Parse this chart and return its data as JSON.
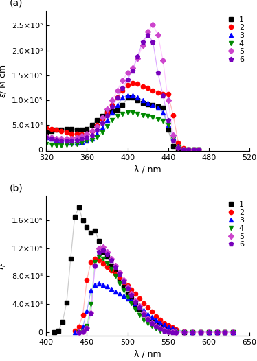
{
  "panel_a": {
    "title": "(a)",
    "xlabel": "λ / nm",
    "ylabel": "ε/ M cm",
    "xlim": [
      320,
      520
    ],
    "ylim": [
      -2000.0,
      280000.0
    ],
    "yticks": [
      0,
      50000.0,
      100000.0,
      150000.0,
      200000.0,
      250000.0
    ],
    "ytick_labels": [
      "0",
      "5.0×10⁴",
      "1.0×10⁵",
      "1.5×10⁵",
      "2.0×10⁵",
      "2.5×10⁵"
    ],
    "xticks": [
      320,
      360,
      400,
      440,
      480,
      520
    ],
    "series": [
      {
        "label": "1",
        "color": "#000000",
        "line_color": "#bbbbbb",
        "marker": "s",
        "x": [
          320,
          325,
          330,
          335,
          340,
          345,
          350,
          355,
          360,
          365,
          370,
          375,
          380,
          385,
          390,
          395,
          400,
          405,
          410,
          415,
          420,
          425,
          430,
          435,
          440,
          445,
          450,
          455,
          460,
          465,
          470
        ],
        "y": [
          35000.0,
          38000.0,
          40000.0,
          41000.0,
          42000.0,
          42000.0,
          41000.0,
          40000.0,
          42000.0,
          50000.0,
          60000.0,
          68000.0,
          75000.0,
          78000.0,
          80000.0,
          90000.0,
          105000.0,
          105000.0,
          100000.0,
          95000.0,
          92000.0,
          90000.0,
          88000.0,
          85000.0,
          40000.0,
          8000.0,
          500.0,
          100.0,
          0,
          0,
          0
        ]
      },
      {
        "label": "2",
        "color": "#ff0000",
        "line_color": "#ffbbbb",
        "marker": "o",
        "x": [
          320,
          325,
          330,
          335,
          340,
          345,
          350,
          355,
          360,
          365,
          370,
          375,
          380,
          385,
          390,
          395,
          400,
          405,
          410,
          415,
          420,
          425,
          430,
          435,
          440,
          445,
          450,
          455,
          460,
          465,
          470
        ],
        "y": [
          45000.0,
          42000.0,
          40000.0,
          38000.0,
          35000.0,
          33000.0,
          32000.0,
          31000.0,
          32000.0,
          38000.0,
          50000.0,
          62000.0,
          75000.0,
          90000.0,
          105000.0,
          120000.0,
          130000.0,
          135000.0,
          133000.0,
          128000.0,
          125000.0,
          120000.0,
          115000.0,
          112000.0,
          112000.0,
          70000.0,
          15000.0,
          3000.0,
          500.0,
          0,
          0
        ]
      },
      {
        "label": "3",
        "color": "#0000ff",
        "line_color": "#aaaaff",
        "marker": "^",
        "x": [
          320,
          325,
          330,
          335,
          340,
          345,
          350,
          355,
          360,
          365,
          370,
          375,
          380,
          385,
          390,
          395,
          400,
          405,
          410,
          415,
          420,
          425,
          430,
          435,
          440,
          445,
          450,
          455,
          460,
          465,
          470
        ],
        "y": [
          25000.0,
          22000.0,
          20000.0,
          18000.0,
          16000.0,
          15000.0,
          15000.0,
          16000.0,
          18000.0,
          22000.0,
          32000.0,
          45000.0,
          60000.0,
          75000.0,
          90000.0,
          105000.0,
          110000.0,
          110000.0,
          105000.0,
          100000.0,
          95000.0,
          90000.0,
          85000.0,
          75000.0,
          50000.0,
          25000.0,
          8000.0,
          2000.0,
          200.0,
          0,
          0
        ]
      },
      {
        "label": "4",
        "color": "#008800",
        "line_color": "#aaffaa",
        "marker": "v",
        "x": [
          320,
          325,
          330,
          335,
          340,
          345,
          350,
          355,
          360,
          365,
          370,
          375,
          380,
          385,
          390,
          395,
          400,
          405,
          410,
          415,
          420,
          425,
          430,
          435,
          440,
          445,
          450,
          455,
          460,
          465,
          470
        ],
        "y": [
          12000.0,
          10000.0,
          9000.0,
          9000.0,
          10000.0,
          11000.0,
          12000.0,
          15000.0,
          18000.0,
          20000.0,
          25000.0,
          35000.0,
          48000.0,
          60000.0,
          68000.0,
          72000.0,
          75000.0,
          75000.0,
          72000.0,
          70000.0,
          68000.0,
          65000.0,
          62000.0,
          58000.0,
          50000.0,
          22000.0,
          4000.0,
          300.0,
          0,
          0,
          0
        ]
      },
      {
        "label": "5",
        "color": "#cc44cc",
        "line_color": "#ffccff",
        "marker": "D",
        "x": [
          320,
          325,
          330,
          335,
          340,
          345,
          350,
          355,
          360,
          365,
          370,
          375,
          380,
          385,
          390,
          395,
          400,
          405,
          410,
          415,
          420,
          425,
          430,
          435,
          440,
          445,
          450,
          455,
          460,
          465,
          470
        ],
        "y": [
          28000.0,
          25000.0,
          23000.0,
          22000.0,
          22000.0,
          23000.0,
          25000.0,
          28000.0,
          32000.0,
          38000.0,
          48000.0,
          65000.0,
          82000.0,
          100000.0,
          120000.0,
          140000.0,
          155000.0,
          165000.0,
          185000.0,
          210000.0,
          238000.0,
          252000.0,
          232000.0,
          180000.0,
          100000.0,
          30000.0,
          5000.0,
          500.0,
          0,
          0,
          0
        ]
      },
      {
        "label": "6",
        "color": "#7700bb",
        "line_color": "#ddaaff",
        "marker": "p",
        "x": [
          320,
          325,
          330,
          335,
          340,
          345,
          350,
          355,
          360,
          365,
          370,
          375,
          380,
          385,
          390,
          395,
          400,
          405,
          410,
          415,
          420,
          425,
          430,
          435,
          440,
          445,
          450,
          455,
          460,
          465,
          470
        ],
        "y": [
          25000.0,
          22000.0,
          20000.0,
          19000.0,
          18000.0,
          19000.0,
          20000.0,
          22000.0,
          25000.0,
          30000.0,
          40000.0,
          55000.0,
          70000.0,
          88000.0,
          105000.0,
          125000.0,
          142000.0,
          160000.0,
          188000.0,
          218000.0,
          232000.0,
          218000.0,
          155000.0,
          110000.0,
          60000.0,
          18000.0,
          4000.0,
          500.0,
          0,
          0,
          0
        ]
      }
    ]
  },
  "panel_b": {
    "title": "(b)",
    "xlabel": "λ / nm",
    "ylabel": "I_F",
    "xlim": [
      400,
      650
    ],
    "ylim": [
      -50000.0,
      1950000.0
    ],
    "yticks": [
      0,
      400000.0,
      800000.0,
      1200000.0,
      1600000.0
    ],
    "ytick_labels": [
      "0",
      "4.0×10⁵",
      "8.0×10⁵",
      "1.2×10⁶",
      "1.6×10⁶"
    ],
    "xticks": [
      400,
      450,
      500,
      550,
      600,
      650
    ],
    "series": [
      {
        "label": "1",
        "color": "#000000",
        "line_color": "#cccccc",
        "marker": "s",
        "x": [
          410,
          415,
          420,
          425,
          430,
          435,
          440,
          445,
          450,
          455,
          460,
          465,
          470,
          475,
          480,
          485,
          490,
          495,
          500,
          505,
          510,
          515,
          520,
          525,
          530,
          535,
          540,
          545,
          550,
          555,
          560,
          570,
          580,
          590,
          600,
          610,
          620,
          630
        ],
        "y": [
          0,
          20000.0,
          150000.0,
          420000.0,
          1050000.0,
          1650000.0,
          1780000.0,
          1600000.0,
          1500000.0,
          1420000.0,
          1450000.0,
          1300000.0,
          1150000.0,
          1080000.0,
          950000.0,
          850000.0,
          750000.0,
          650000.0,
          550000.0,
          480000.0,
          400000.0,
          320000.0,
          260000.0,
          200000.0,
          150000.0,
          110000.0,
          75000.0,
          50000.0,
          30000.0,
          15000.0,
          8000.0,
          2000.0,
          500.0,
          0,
          0,
          0,
          0,
          0
        ]
      },
      {
        "label": "2",
        "color": "#ff0000",
        "line_color": "#ffbbbb",
        "marker": "o",
        "x": [
          435,
          440,
          445,
          450,
          455,
          460,
          465,
          470,
          475,
          480,
          485,
          490,
          495,
          500,
          505,
          510,
          515,
          520,
          525,
          530,
          535,
          540,
          545,
          550,
          555,
          560,
          570,
          580,
          590,
          600,
          610,
          620,
          630
        ],
        "y": [
          20000.0,
          80000.0,
          250000.0,
          750000.0,
          1000000.0,
          1050000.0,
          1030000.0,
          980000.0,
          930000.0,
          880000.0,
          830000.0,
          780000.0,
          720000.0,
          670000.0,
          610000.0,
          550000.0,
          480000.0,
          410000.0,
          350000.0,
          290000.0,
          230000.0,
          180000.0,
          130000.0,
          95000.0,
          65000.0,
          40000.0,
          12000.0,
          2000.0,
          500.0,
          0,
          0,
          0,
          0
        ]
      },
      {
        "label": "3",
        "color": "#0000ff",
        "line_color": "#aaaaff",
        "marker": "^",
        "x": [
          435,
          440,
          445,
          450,
          455,
          460,
          465,
          470,
          475,
          480,
          485,
          490,
          495,
          500,
          505,
          510,
          515,
          520,
          525,
          530,
          535,
          540,
          545,
          550,
          555,
          560,
          570,
          580,
          590,
          600,
          610,
          620,
          630
        ],
        "y": [
          5000.0,
          20000.0,
          80000.0,
          300000.0,
          600000.0,
          680000.0,
          700000.0,
          680000.0,
          660000.0,
          620000.0,
          580000.0,
          550000.0,
          520000.0,
          480000.0,
          450000.0,
          410000.0,
          360000.0,
          310000.0,
          260000.0,
          220000.0,
          180000.0,
          140000.0,
          110000.0,
          80000.0,
          55000.0,
          35000.0,
          12000.0,
          3000.0,
          500.0,
          0,
          0,
          0,
          0
        ]
      },
      {
        "label": "4",
        "color": "#008800",
        "line_color": "#aaffaa",
        "marker": "v",
        "x": [
          440,
          445,
          450,
          455,
          460,
          465,
          470,
          475,
          480,
          485,
          490,
          495,
          500,
          505,
          510,
          515,
          520,
          525,
          530,
          535,
          540,
          545,
          550,
          555,
          560,
          570,
          580,
          590,
          600,
          610,
          620,
          630
        ],
        "y": [
          5000.0,
          20000.0,
          90000.0,
          400000.0,
          1000000.0,
          1080000.0,
          1050000.0,
          980000.0,
          900000.0,
          800000.0,
          700000.0,
          600000.0,
          500000.0,
          410000.0,
          320000.0,
          250000.0,
          180000.0,
          130000.0,
          85000.0,
          50000.0,
          25000.0,
          10000.0,
          3000.0,
          1000.0,
          200.0,
          0,
          0,
          0,
          0,
          0,
          0,
          0
        ]
      },
      {
        "label": "5",
        "color": "#cc44cc",
        "line_color": "#ffccff",
        "marker": "D",
        "x": [
          440,
          445,
          450,
          455,
          460,
          465,
          470,
          475,
          480,
          485,
          490,
          495,
          500,
          505,
          510,
          515,
          520,
          525,
          530,
          535,
          540,
          545,
          550,
          555,
          560,
          570,
          580,
          590,
          600,
          610,
          620,
          630
        ],
        "y": [
          3000.0,
          12000.0,
          60000.0,
          280000.0,
          950000.0,
          1200000.0,
          1220000.0,
          1150000.0,
          1050000.0,
          950000.0,
          850000.0,
          750000.0,
          650000.0,
          550000.0,
          450000.0,
          370000.0,
          280000.0,
          200000.0,
          140000.0,
          90000.0,
          55000.0,
          30000.0,
          15000.0,
          6000.0,
          2000.0,
          300.0,
          0,
          0,
          0,
          0,
          0,
          0
        ]
      },
      {
        "label": "6",
        "color": "#7700bb",
        "line_color": "#ddaaff",
        "marker": "p",
        "x": [
          440,
          445,
          450,
          455,
          460,
          465,
          470,
          475,
          480,
          485,
          490,
          495,
          500,
          505,
          510,
          515,
          520,
          525,
          530,
          535,
          540,
          545,
          550,
          555,
          560,
          570,
          580,
          590,
          600,
          610,
          620,
          630
        ],
        "y": [
          3000.0,
          12000.0,
          60000.0,
          280000.0,
          950000.0,
          1150000.0,
          1180000.0,
          1120000.0,
          1030000.0,
          930000.0,
          830000.0,
          730000.0,
          630000.0,
          530000.0,
          430000.0,
          350000.0,
          260000.0,
          190000.0,
          130000.0,
          80000.0,
          50000.0,
          25000.0,
          12000.0,
          5000.0,
          2000.0,
          200.0,
          0,
          0,
          0,
          0,
          0,
          0
        ]
      }
    ]
  }
}
